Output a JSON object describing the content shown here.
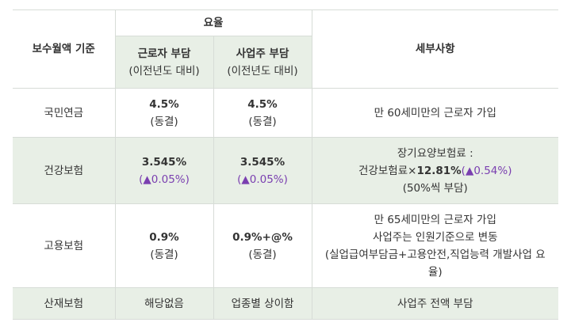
{
  "header": {
    "base_col": "보수월액 기준",
    "rate_group": "요율",
    "employee": "근로자 부담",
    "employer": "사업주 부담",
    "vs_prev": "(이전년도 대비)",
    "details": "세부사항"
  },
  "rows": [
    {
      "name": "국민연금",
      "emp_rate": "4.5%",
      "emp_note": "(동결)",
      "boss_rate": "4.5%",
      "boss_note": "(동결)",
      "detail": "만 60세미만의 근로자 가입"
    },
    {
      "name": "건강보험",
      "emp_rate": "3.545%",
      "emp_note": "(▲0.05%)",
      "boss_rate": "3.545%",
      "boss_note": "(▲0.05%)",
      "detail_line1": "장기요양보험료 :",
      "detail_line2_prefix": "건강보험료×",
      "detail_line2_bold": "12.81%",
      "detail_line2_purple": "(▲0.54%)",
      "detail_line3": "(50%씩 부담)"
    },
    {
      "name": "고용보험",
      "emp_rate": "0.9%",
      "emp_note": "(동결)",
      "boss_rate": "0.9%+@%",
      "boss_note": "(동결)",
      "detail_line1": "만 65세미만의 근로자 가입",
      "detail_line2": "사업주는 인원기준으로 변동",
      "detail_line3": "(실업급여부담금+고용안전,직업능력 개발사업 요",
      "detail_line4": "율)"
    },
    {
      "name": "산재보험",
      "emp_text": "해당없음",
      "boss_text": "업종별 상이함",
      "detail": "사업주 전액 부담"
    }
  ],
  "colors": {
    "shade": "#e8efe6",
    "border": "#d7dcd7",
    "accent_purple": "#7a3fb0"
  }
}
